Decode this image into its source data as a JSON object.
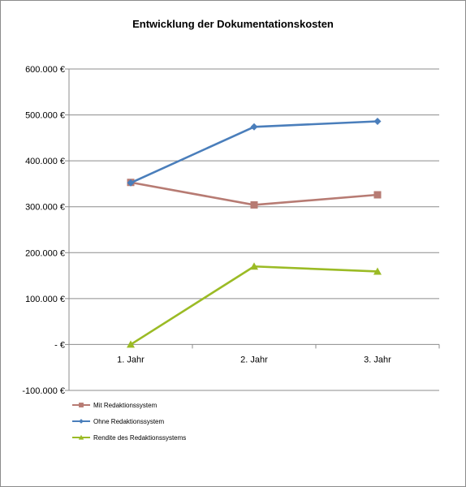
{
  "chart_data": {
    "type": "line",
    "title": "Entwicklung der Dokumentationskosten",
    "xlabel": "",
    "ylabel": "",
    "categories": [
      "1. Jahr",
      "2. Jahr",
      "3. Jahr"
    ],
    "ylim": [
      -100000,
      600000
    ],
    "y_ticks": [
      600000,
      500000,
      400000,
      300000,
      200000,
      100000,
      0,
      -100000
    ],
    "y_tick_labels": [
      "600.000 €",
      "500.000 €",
      "400.000 €",
      "300.000 €",
      "200.000 €",
      "100.000 €",
      "-   €",
      "-100.000 €"
    ],
    "grid": true,
    "legend_position": "bottom-left",
    "series": [
      {
        "name": "Mit Redaktionssystem",
        "values": [
          353000,
          304000,
          326000
        ],
        "color": "#b77b73",
        "marker": "square"
      },
      {
        "name": "Ohne Redaktionssystem",
        "values": [
          352000,
          474000,
          486000
        ],
        "color": "#4a7ebb",
        "marker": "diamond"
      },
      {
        "name": "Rendite des Redaktionssystems",
        "values": [
          0,
          170000,
          159000
        ],
        "color": "#9bbb25",
        "marker": "triangle"
      }
    ]
  }
}
